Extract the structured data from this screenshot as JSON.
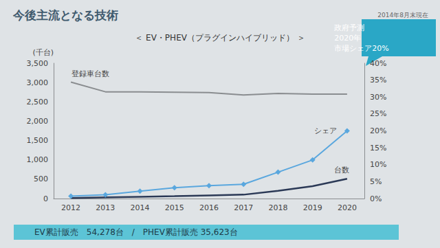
{
  "chart_data": {
    "type": "line",
    "title": "今後主流となる技術",
    "subtitle": "＜ EV・PHEV（プラグインハイブリッド） ＞",
    "note": "2014年8月末現在",
    "y_label": "(千台)",
    "categories": [
      "2012",
      "2013",
      "2014",
      "2015",
      "2016",
      "2017",
      "2018",
      "2019",
      "2020"
    ],
    "ylim": [
      0,
      3500
    ],
    "yticks": [
      0,
      500,
      {
        "value": 1000,
        "label": "1,000"
      },
      {
        "value": 1500,
        "label": "1,500"
      },
      {
        "value": 2000,
        "label": "2,000"
      },
      {
        "value": 2500,
        "label": "2,500"
      },
      {
        "value": 3000,
        "label": "3,000"
      },
      {
        "value": 3500,
        "label": "3,500"
      }
    ],
    "y2lim": [
      0,
      40
    ],
    "y2ticks": [
      {
        "value": 0,
        "label": "0%"
      },
      {
        "value": 5,
        "label": "5%"
      },
      {
        "value": 10,
        "label": "10%"
      },
      {
        "value": 15,
        "label": "15%"
      },
      {
        "value": 20,
        "label": "20%"
      },
      {
        "value": 25,
        "label": "25%"
      },
      {
        "value": 30,
        "label": "30%"
      },
      {
        "value": 35,
        "label": "35%"
      },
      {
        "value": 40,
        "label": "40%"
      }
    ],
    "grid": false,
    "series": [
      {
        "name": "登録車台数",
        "color": "#8a8d90",
        "marker": "none",
        "values": [
          3010,
          2760,
          2760,
          2750,
          2740,
          2680,
          2720,
          2700,
          2700
        ]
      },
      {
        "name": "シェア",
        "color": "#5aa7de",
        "marker": "diamond",
        "axis": "y2",
        "values": [
          0.7,
          1.1,
          2.2,
          3.2,
          3.8,
          4.2,
          7.8,
          11.4,
          20
        ]
      },
      {
        "name": "台数",
        "color": "#2b3956",
        "marker": "none",
        "values": [
          15,
          30,
          45,
          60,
          80,
          100,
          200,
          320,
          510
        ]
      }
    ],
    "annotation": [
      "政府予測",
      "2020年",
      "市場シェア20%"
    ],
    "footer": "EV累計販売　54,278台　/　PHEV累計販売 35,623台"
  }
}
